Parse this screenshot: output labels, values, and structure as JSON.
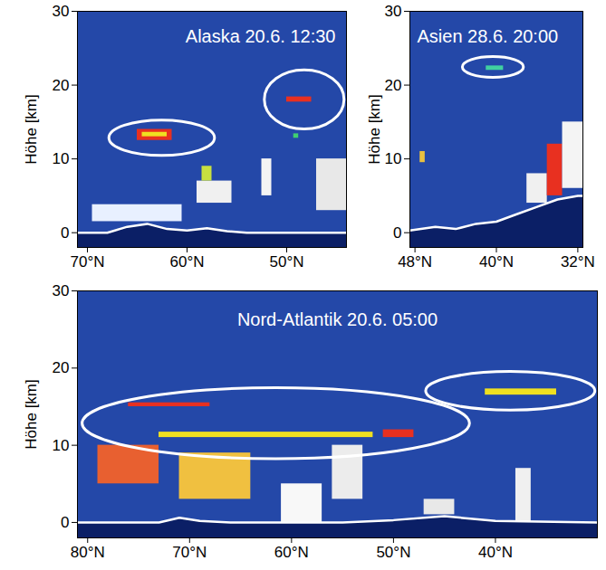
{
  "chart_data": [
    {
      "type": "profile",
      "title": "Alaska 20.6. 12:30",
      "ylabel": "Höhe [km]",
      "xlim": [
        71,
        44
      ],
      "ylim": [
        -2,
        30
      ],
      "xticks": [
        {
          "value": 70,
          "label": "70°N"
        },
        {
          "value": 60,
          "label": "60°N"
        },
        {
          "value": 50,
          "label": "50°N"
        }
      ],
      "yticks": [
        0,
        10,
        20,
        30
      ],
      "surface": {
        "lat": [
          71,
          68,
          66,
          64,
          62,
          60,
          58,
          56,
          54,
          50,
          44
        ],
        "height": [
          0,
          0,
          0.8,
          1.2,
          0.5,
          0.3,
          0.6,
          0.2,
          0,
          0,
          0
        ]
      },
      "layers": [
        {
          "lat": [
            69.5,
            60.5
          ],
          "height": [
            1.5,
            3.8
          ],
          "color": "#e8f0ff"
        },
        {
          "lat": [
            59,
            55.5
          ],
          "height": [
            4,
            7
          ],
          "color": "#f0f0f0"
        },
        {
          "lat": [
            58.5,
            57.5
          ],
          "height": [
            7,
            9
          ],
          "color": "#c8e040"
        },
        {
          "lat": [
            52.5,
            51.5
          ],
          "height": [
            5,
            10
          ],
          "color": "#f4f4f4"
        },
        {
          "lat": [
            47,
            44
          ],
          "height": [
            3,
            10
          ],
          "color": "#e8e8e8"
        },
        {
          "lat": [
            65,
            61.5
          ],
          "height": [
            12.5,
            14
          ],
          "color": "#e83020"
        },
        {
          "lat": [
            64.5,
            62
          ],
          "height": [
            13,
            13.6
          ],
          "color": "#f0e020"
        },
        {
          "lat": [
            50,
            47.5
          ],
          "height": [
            17.7,
            18.4
          ],
          "color": "#e83020"
        },
        {
          "lat": [
            49.3,
            48.8
          ],
          "height": [
            12.8,
            13.4
          ],
          "color": "#40d070"
        }
      ],
      "markings": [
        {
          "lat": 62.5,
          "height": 12.8,
          "lat_radius": 5.3,
          "height_radius": 2.4
        },
        {
          "lat": 48.2,
          "height": 18,
          "lat_radius": 4,
          "height_radius": 4
        }
      ]
    },
    {
      "type": "profile",
      "title": "Asien 28.6. 20:00",
      "ylabel": "Höhe [km]",
      "xlim": [
        48.5,
        31.5
      ],
      "ylim": [
        -2,
        30
      ],
      "xticks": [
        {
          "value": 48,
          "label": "48°N"
        },
        {
          "value": 40,
          "label": "40°N"
        },
        {
          "value": 32,
          "label": "32°N"
        }
      ],
      "yticks": [
        0,
        10,
        20,
        30
      ],
      "surface": {
        "lat": [
          48.5,
          46,
          44,
          42,
          40,
          38,
          36,
          34,
          32,
          31.5
        ],
        "height": [
          0.3,
          0.8,
          0.5,
          1.2,
          1.5,
          2.5,
          3.5,
          4.5,
          5,
          5
        ]
      },
      "layers": [
        {
          "lat": [
            47.5,
            47
          ],
          "height": [
            9.5,
            11
          ],
          "color": "#e8c040"
        },
        {
          "lat": [
            37,
            35
          ],
          "height": [
            4,
            8
          ],
          "color": "#f0f0f0"
        },
        {
          "lat": [
            35,
            33.5
          ],
          "height": [
            5,
            12
          ],
          "color": "#e83020"
        },
        {
          "lat": [
            33.5,
            31.5
          ],
          "height": [
            6,
            15
          ],
          "color": "#f4f4f4"
        },
        {
          "lat": [
            41,
            39.3
          ],
          "height": [
            22,
            22.6
          ],
          "color": "#40d0a0"
        }
      ],
      "markings": [
        {
          "lat": 40.3,
          "height": 22.4,
          "lat_radius": 3,
          "height_radius": 1.4
        }
      ]
    },
    {
      "type": "profile",
      "title": "Nord-Atlantik 20.6. 05:00",
      "ylabel": "Höhe [km]",
      "xlim": [
        81,
        30
      ],
      "ylim": [
        -2,
        30
      ],
      "xticks": [
        {
          "value": 80,
          "label": "80°N"
        },
        {
          "value": 70,
          "label": "70°N"
        },
        {
          "value": 60,
          "label": "60°N"
        },
        {
          "value": 50,
          "label": "50°N"
        },
        {
          "value": 40,
          "label": "40°N"
        }
      ],
      "yticks": [
        0,
        10,
        20,
        30
      ],
      "surface": {
        "lat": [
          81,
          73,
          71,
          69,
          66,
          62,
          55,
          50,
          45,
          40,
          30
        ],
        "height": [
          0,
          0,
          0.6,
          0.2,
          0,
          0,
          0,
          0.3,
          0.8,
          0.2,
          0
        ]
      },
      "layers": [
        {
          "lat": [
            79,
            73
          ],
          "height": [
            5,
            10
          ],
          "color": "#e86030"
        },
        {
          "lat": [
            71,
            64
          ],
          "height": [
            3,
            9
          ],
          "color": "#f0c040"
        },
        {
          "lat": [
            61,
            57
          ],
          "height": [
            0,
            5
          ],
          "color": "#f8f8f8"
        },
        {
          "lat": [
            56,
            53
          ],
          "height": [
            3,
            10
          ],
          "color": "#ececec"
        },
        {
          "lat": [
            47,
            44
          ],
          "height": [
            1,
            3
          ],
          "color": "#e8e8e8"
        },
        {
          "lat": [
            38,
            36.5
          ],
          "height": [
            0,
            7
          ],
          "color": "#f0f0f0"
        },
        {
          "lat": [
            76,
            68
          ],
          "height": [
            15,
            15.5
          ],
          "color": "#e83020"
        },
        {
          "lat": [
            73,
            52
          ],
          "height": [
            11,
            11.7
          ],
          "color": "#f0e020"
        },
        {
          "lat": [
            51,
            48
          ],
          "height": [
            11,
            12
          ],
          "color": "#e83020"
        },
        {
          "lat": [
            41,
            34
          ],
          "height": [
            16.5,
            17.3
          ],
          "color": "#f0e020"
        }
      ],
      "markings": [
        {
          "lat": 61.5,
          "height": 12.8,
          "lat_radius": 19,
          "height_radius": 4.6
        },
        {
          "lat": 38.5,
          "height": 17,
          "lat_radius": 8.3,
          "height_radius": 2.5
        }
      ]
    }
  ]
}
